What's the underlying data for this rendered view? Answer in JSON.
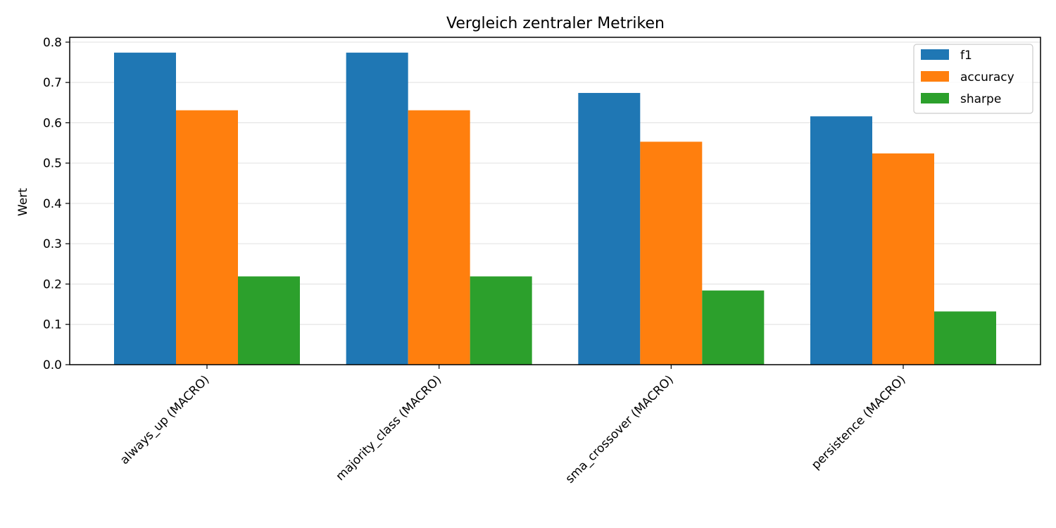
{
  "chart_data": {
    "type": "bar",
    "title": "Vergleich zentraler Metriken",
    "xlabel": "",
    "ylabel": "Wert",
    "categories": [
      "always_up (MACRO)",
      "majority_class (MACRO)",
      "sma_crossover (MACRO)",
      "persistence (MACRO)"
    ],
    "series": [
      {
        "name": "f1",
        "color": "#1f77b4",
        "values": [
          0.774,
          0.774,
          0.674,
          0.616
        ]
      },
      {
        "name": "accuracy",
        "color": "#ff7f0e",
        "values": [
          0.631,
          0.631,
          0.553,
          0.524
        ]
      },
      {
        "name": "sharpe",
        "color": "#2ca02c",
        "values": [
          0.219,
          0.219,
          0.184,
          0.132
        ]
      }
    ],
    "ylim": [
      0,
      0.812
    ],
    "yticks": [
      0.0,
      0.1,
      0.2,
      0.3,
      0.4,
      0.5,
      0.6,
      0.7,
      0.8
    ],
    "ytick_labels": [
      "0.0",
      "0.1",
      "0.2",
      "0.3",
      "0.4",
      "0.5",
      "0.6",
      "0.7",
      "0.8"
    ],
    "grid": true,
    "legend_position": "top-right"
  }
}
